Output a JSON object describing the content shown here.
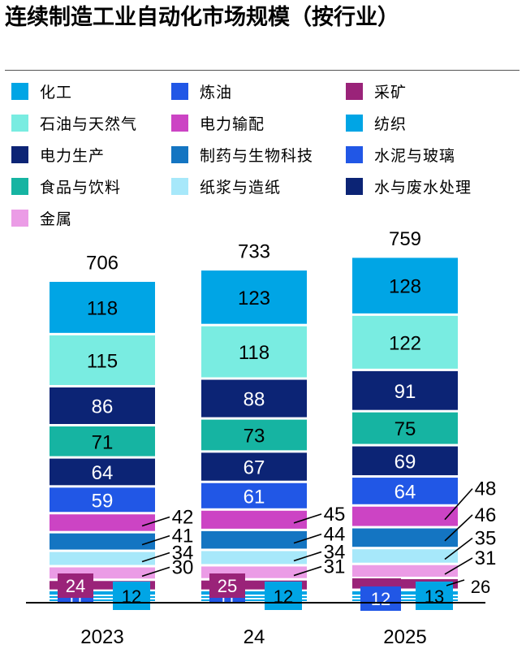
{
  "title": "连续制造工业自动化市场规模（按行业）",
  "legend": [
    {
      "label": "化工",
      "color": "#00a5e5"
    },
    {
      "label": "炼油",
      "color": "#2157e6"
    },
    {
      "label": "采矿",
      "color": "#9a2379"
    },
    {
      "label": "石油与天然气",
      "color": "#79ece1"
    },
    {
      "label": "电力输配",
      "color": "#cc44c4"
    },
    {
      "label": "纺织",
      "color": "#00a5e5"
    },
    {
      "label": "电力生产",
      "color": "#0c2475"
    },
    {
      "label": "制药与生物科技",
      "color": "#1475c2"
    },
    {
      "label": "水泥与玻璃",
      "color": "#2157e6"
    },
    {
      "label": "食品与饮料",
      "color": "#16b4a2"
    },
    {
      "label": "纸浆与造纸",
      "color": "#a7e8fa"
    },
    {
      "label": "水与废水处理",
      "color": "#0c2475"
    },
    {
      "label": "金属",
      "color": "#eb9ce6"
    }
  ],
  "chart_data": {
    "type": "bar",
    "stacked": true,
    "categories": [
      "2023",
      "24",
      "2025"
    ],
    "totals": [
      706,
      733,
      759
    ],
    "series": [
      {
        "name": "纺织",
        "values": [
          12,
          12,
          13
        ],
        "color": "#00a5e5"
      },
      {
        "name": "水泥与玻璃",
        "values": [
          11,
          11,
          12
        ],
        "color": "#2157e6"
      },
      {
        "name": "采矿",
        "values": [
          24,
          25,
          26
        ],
        "color": "#9a2379"
      },
      {
        "name": "金属",
        "values": [
          30,
          31,
          31
        ],
        "color": "#eb9ce6"
      },
      {
        "name": "纸浆与造纸",
        "values": [
          34,
          34,
          35
        ],
        "color": "#a7e8fa"
      },
      {
        "name": "制药与生物科技",
        "values": [
          41,
          44,
          46
        ],
        "color": "#1475c2"
      },
      {
        "name": "电力输配",
        "values": [
          42,
          45,
          48
        ],
        "color": "#cc44c4"
      },
      {
        "name": "炼油",
        "values": [
          59,
          61,
          64
        ],
        "color": "#2157e6"
      },
      {
        "name": "水与废水处理",
        "values": [
          64,
          67,
          69
        ],
        "color": "#0c2475"
      },
      {
        "name": "食品与饮料",
        "values": [
          71,
          73,
          75
        ],
        "color": "#16b4a2"
      },
      {
        "name": "电力生产",
        "values": [
          86,
          88,
          91
        ],
        "color": "#0c2475"
      },
      {
        "name": "石油与天然气",
        "values": [
          115,
          118,
          122
        ],
        "color": "#79ece1"
      },
      {
        "name": "化工",
        "values": [
          118,
          123,
          128
        ],
        "color": "#00a5e5"
      }
    ]
  }
}
